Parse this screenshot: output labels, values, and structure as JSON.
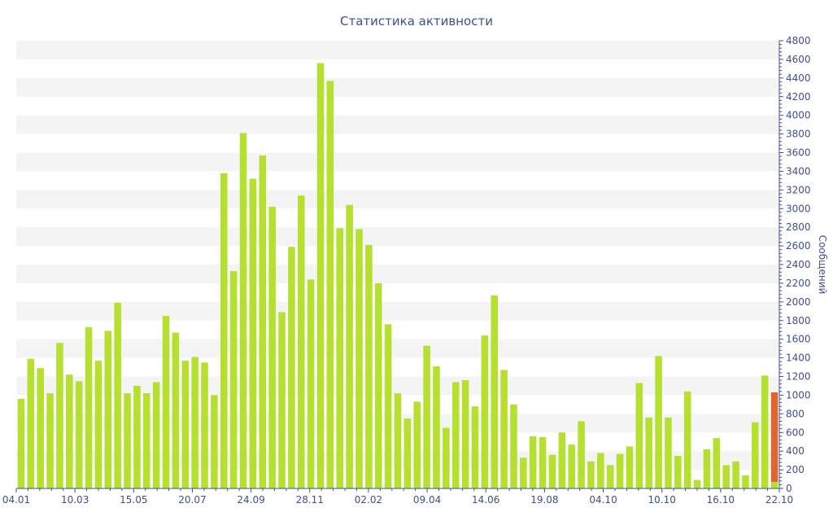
{
  "chart_data": {
    "type": "bar",
    "title": "Статистика активности",
    "ylabel": "Сообщений",
    "ylim": [
      0,
      4800
    ],
    "y_ticks": [
      0,
      200,
      400,
      600,
      800,
      1000,
      1200,
      1400,
      1600,
      1800,
      2000,
      2200,
      2400,
      2600,
      2800,
      3000,
      3200,
      3400,
      3600,
      3800,
      4000,
      4200,
      4400,
      4600,
      4800
    ],
    "x_tick_labels": [
      "04.01",
      "10.03",
      "15.05",
      "20.07",
      "24.09",
      "28.11",
      "02.02",
      "09.04",
      "14.06",
      "19.08",
      "04.10",
      "10.10",
      "16.10",
      "22.10"
    ],
    "y_axis_position": "right",
    "grid": "alternating horizontal bands",
    "series": [
      {
        "color": "#b5e030",
        "values": [
          960,
          1390,
          1290,
          1020,
          1560,
          1220,
          1150,
          1730,
          1370,
          1690,
          1990,
          1020,
          1100,
          1020,
          1140,
          1850,
          1670,
          1370,
          1410,
          1350,
          1000,
          3380,
          2330,
          3810,
          3320,
          3570,
          3020,
          1890,
          2590,
          3140,
          2240,
          4560,
          4370,
          2790,
          3040,
          2780,
          2610,
          2200,
          1760,
          1020,
          750,
          930,
          1530,
          1310,
          650,
          1140,
          1160,
          880,
          1640,
          2070,
          1270,
          900,
          330,
          560,
          550,
          360,
          600,
          470,
          720,
          290,
          380,
          250,
          370,
          450,
          1130,
          760,
          1420,
          760,
          350,
          1040,
          90,
          420,
          540,
          250,
          290,
          140,
          710,
          1210,
          70
        ]
      },
      {
        "color": "#e06530",
        "values": [
          0,
          0,
          0,
          0,
          0,
          0,
          0,
          0,
          0,
          0,
          0,
          0,
          0,
          0,
          0,
          0,
          0,
          0,
          0,
          0,
          0,
          0,
          0,
          0,
          0,
          0,
          0,
          0,
          0,
          0,
          0,
          0,
          0,
          0,
          0,
          0,
          0,
          0,
          0,
          0,
          0,
          0,
          0,
          0,
          0,
          0,
          0,
          0,
          0,
          0,
          0,
          0,
          0,
          0,
          0,
          0,
          0,
          0,
          0,
          0,
          0,
          0,
          0,
          0,
          0,
          0,
          0,
          0,
          0,
          0,
          0,
          0,
          0,
          0,
          0,
          0,
          0,
          0,
          960
        ]
      }
    ]
  },
  "colors": {
    "text": "#3d4f8f",
    "axis": "#3d4f8f",
    "band": "#f4f4f4"
  }
}
